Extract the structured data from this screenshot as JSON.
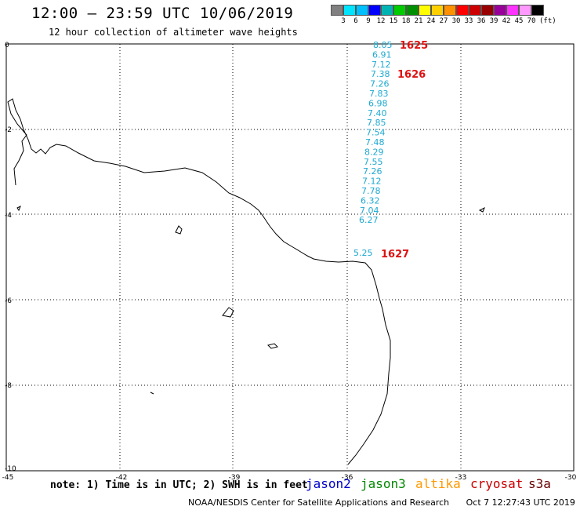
{
  "header": {
    "title": "12:00 — 23:59 UTC 10/06/2019",
    "subtitle": "12 hour collection of altimeter wave heights"
  },
  "legend": {
    "colors": [
      "#808080",
      "#00e5ff",
      "#00bfff",
      "#0000ff",
      "#00b3b3",
      "#00cc00",
      "#008f00",
      "#ffff00",
      "#ffd000",
      "#ff9000",
      "#ff0000",
      "#cc0000",
      "#990000",
      "#990099",
      "#ff33ff",
      "#ff99ff",
      "#000000"
    ],
    "labels": [
      "3",
      "6",
      "9",
      "12",
      "15",
      "18",
      "21",
      "24",
      "27",
      "30",
      "33",
      "36",
      "39",
      "42",
      "45",
      "70"
    ],
    "unit": "(ft)"
  },
  "axes": {
    "x_ticks": [
      "-45",
      "-42",
      "-39",
      "-36",
      "-33",
      "-30"
    ],
    "y_ticks": [
      "0",
      "-2",
      "-4",
      "-6",
      "-8",
      "-10"
    ]
  },
  "observations": {
    "values": [
      "8.05",
      "6.91",
      "7.12",
      "7.38",
      "7.26",
      "7.83",
      "6.98",
      "7.40",
      "7.85",
      "7.54",
      "7.48",
      "8.29",
      "7.55",
      "7.26",
      "7.12",
      "7.78",
      "6.32",
      "7.04",
      "6.27",
      "5.25"
    ],
    "pass_labels": [
      "1625",
      "1626",
      "1627"
    ]
  },
  "footer": {
    "note": "note: 1) Time is in UTC; 2) SWH is in feet",
    "satellites": [
      {
        "name": "jason2",
        "color": "#0000cc"
      },
      {
        "name": "jason3",
        "color": "#008800"
      },
      {
        "name": "altika",
        "color": "#ff9900"
      },
      {
        "name": "cryosat",
        "color": "#cc0000"
      },
      {
        "name": "s3a",
        "color": "#660000"
      }
    ],
    "credit": "NOAA/NESDIS Center for Satellite Applications and Research",
    "timestamp": "Oct  7 12:27:43 UTC 2019"
  }
}
